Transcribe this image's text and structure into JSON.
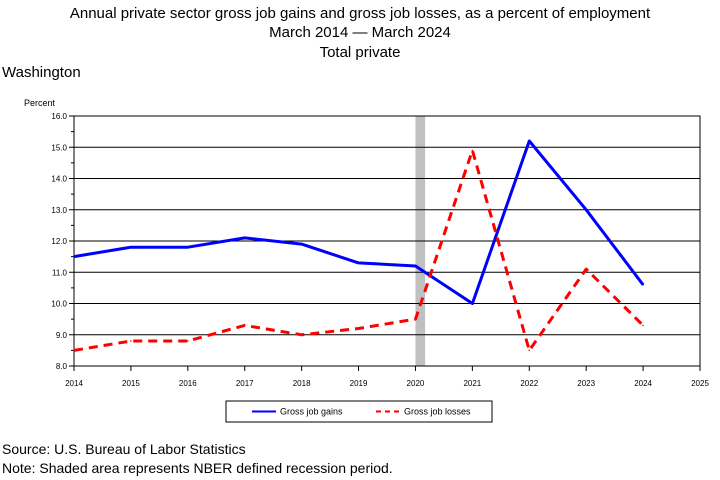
{
  "header": {
    "title_line1": "Annual private sector gross job gains and gross job losses, as a percent of employment",
    "title_line2": "March 2014 — March 2024",
    "title_line3": "Total private",
    "region": "Washington"
  },
  "footer": {
    "source": "Source: U.S. Bureau of Labor Statistics",
    "note": "Note: Shaded area represents NBER defined recession period."
  },
  "chart_data": {
    "type": "line",
    "ylabel": "Percent",
    "xlabel": "",
    "xlim": [
      2014,
      2025
    ],
    "ylim": [
      8.0,
      16.0
    ],
    "x_ticks": [
      "2014",
      "2015",
      "2016",
      "2017",
      "2018",
      "2019",
      "2020",
      "2021",
      "2022",
      "2023",
      "2024",
      "2025"
    ],
    "y_ticks": [
      "8.0",
      "9.0",
      "10.0",
      "11.0",
      "12.0",
      "13.0",
      "14.0",
      "15.0",
      "16.0"
    ],
    "grid": true,
    "legend_position": "bottom",
    "recession": {
      "start": 2020.0,
      "end": 2020.17,
      "color": "#c0c0c0"
    },
    "series": [
      {
        "name": "Gross job gains",
        "color": "#0000ff",
        "style": "solid",
        "x": [
          2014,
          2015,
          2016,
          2017,
          2018,
          2019,
          2020,
          2021,
          2022,
          2023,
          2024
        ],
        "values": [
          11.5,
          11.8,
          11.8,
          12.1,
          11.9,
          11.3,
          11.2,
          10.0,
          15.2,
          13.0,
          10.6
        ]
      },
      {
        "name": "Gross job losses",
        "color": "#ff0000",
        "style": "dashed",
        "x": [
          2014,
          2015,
          2016,
          2017,
          2018,
          2019,
          2020,
          2021,
          2022,
          2023,
          2024
        ],
        "values": [
          8.5,
          8.8,
          8.8,
          9.3,
          9.0,
          9.2,
          9.5,
          14.9,
          8.5,
          11.1,
          9.3
        ]
      }
    ]
  }
}
